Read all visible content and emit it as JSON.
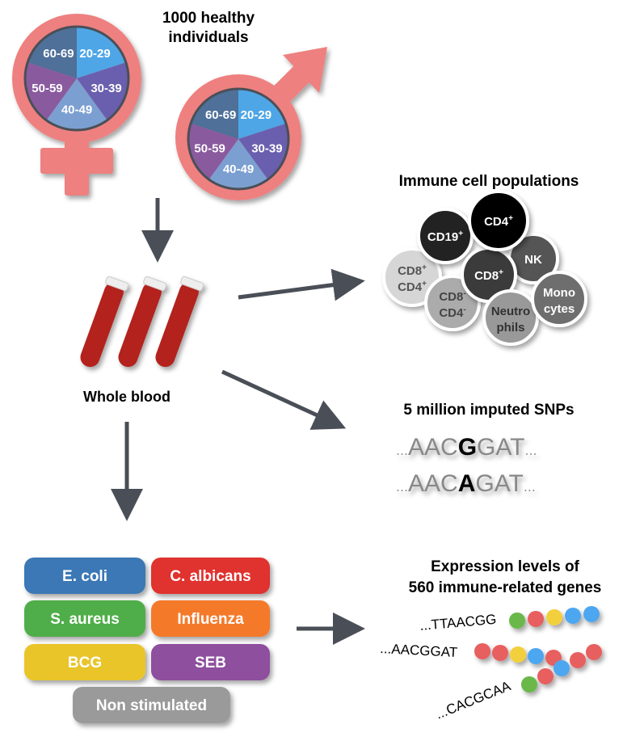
{
  "title": {
    "line1": "1000 healthy",
    "line2": "individuals"
  },
  "age_groups": [
    "20-29",
    "30-39",
    "40-49",
    "50-59",
    "60-69"
  ],
  "age_colors": [
    "#4ea6e6",
    "#6a5fae",
    "#7b9fd0",
    "#8a5a9e",
    "#4e7099"
  ],
  "symbol_color": "#ee8080",
  "arrow_color": "#4a4f57",
  "whole_blood": "Whole blood",
  "immune": {
    "title": "Immune cell populations",
    "cells": [
      {
        "l1": "CD8",
        "s1": "+",
        "l2": "CD4",
        "s2": "+",
        "fill": "#d6d6d6",
        "text": "#555555"
      },
      {
        "l1": "CD19",
        "s1": "+",
        "l2": "",
        "s2": "",
        "fill": "#222222",
        "text": "#ffffff"
      },
      {
        "l1": "CD8",
        "s1": "-",
        "l2": "CD4",
        "s2": "-",
        "fill": "#ababab",
        "text": "#444444"
      },
      {
        "l1": "NK",
        "s1": "",
        "l2": "",
        "s2": "",
        "fill": "#555555",
        "text": "#ffffff"
      },
      {
        "l1": "CD8",
        "s1": "+",
        "l2": "",
        "s2": "",
        "fill": "#3a3a3a",
        "text": "#ffffff"
      },
      {
        "l1": "CD4",
        "s1": "+",
        "l2": "",
        "s2": "",
        "fill": "#000000",
        "text": "#ffffff"
      },
      {
        "l1": "Neutro",
        "s1": "",
        "l2": "phils",
        "s2": "",
        "fill": "#999999",
        "text": "#333333"
      },
      {
        "l1": "Mono",
        "s1": "",
        "l2": "cytes",
        "s2": "",
        "fill": "#6e6e6e",
        "text": "#ffffff"
      }
    ]
  },
  "snps": {
    "title": "5 million imputed SNPs",
    "seq1": {
      "pre": "AACG",
      "snp": "G",
      "post": "AT"
    },
    "seq1_prefix": "AAC",
    "seq1_allele": "G",
    "seq1_suffix": "GAT",
    "seq2_prefix": "AAC",
    "seq2_allele": "A",
    "seq2_suffix": "GAT",
    "dots": "..."
  },
  "stimuli": [
    {
      "label": "E. coli",
      "color": "#3a78b5"
    },
    {
      "label": "C. albicans",
      "color": "#e0312f"
    },
    {
      "label": "S. aureus",
      "color": "#4fae4a"
    },
    {
      "label": "Influenza",
      "color": "#f47a2a"
    },
    {
      "label": "BCG",
      "color": "#e9c52c"
    },
    {
      "label": "SEB",
      "color": "#8e4f9e"
    },
    {
      "label": "Non stimulated",
      "color": "#9a9a9a"
    }
  ],
  "expression": {
    "title1": "Expression levels of",
    "title2": "560 immune-related genes",
    "seqs": [
      "...TTAACGG",
      "...AACGGAT",
      "...CACGCAA"
    ],
    "bead_colors": {
      "green": "#6ab84a",
      "red": "#e85e5e",
      "yellow": "#f2cf3c",
      "blue": "#4ea6f0"
    }
  }
}
